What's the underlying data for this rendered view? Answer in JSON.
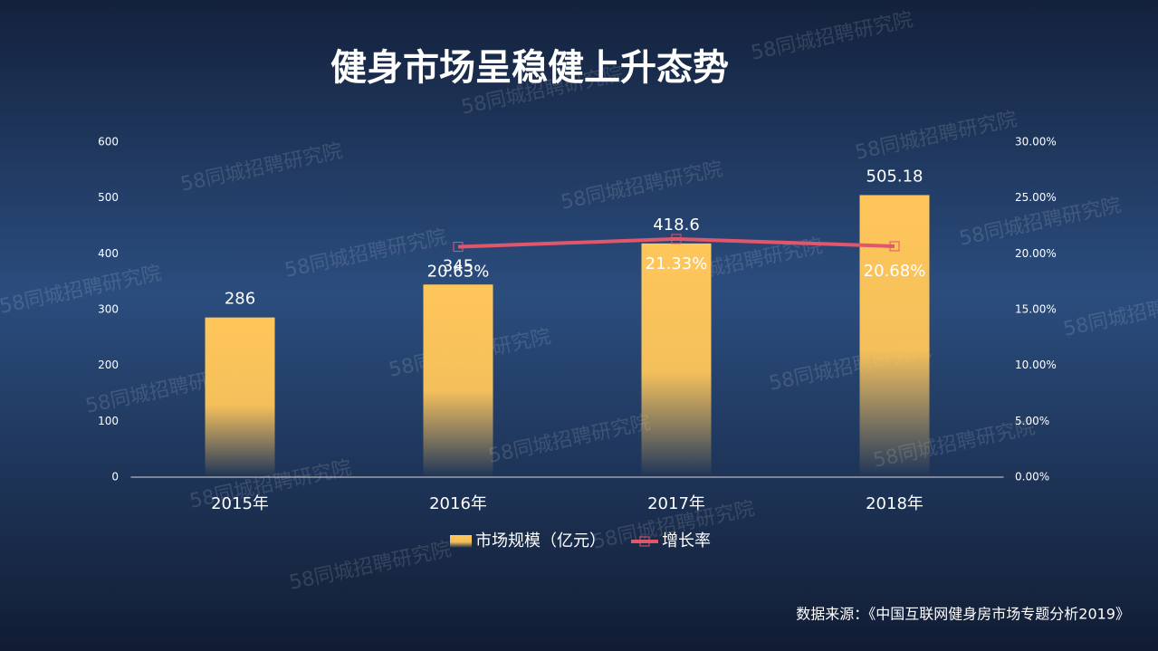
{
  "chart_data": {
    "type": "combo",
    "title": "健身市场呈稳健上升态势",
    "categories": [
      "2015年",
      "2016年",
      "2017年",
      "2018年"
    ],
    "series": [
      {
        "name": "市场规模（亿元）",
        "type": "bar",
        "color": "#FFC65A",
        "values": [
          286,
          345,
          418.6,
          505.18
        ]
      },
      {
        "name": "增长率",
        "type": "line",
        "axis": "y2",
        "color": "#E0566B",
        "values": [
          null,
          20.63,
          21.33,
          20.68
        ],
        "value_labels": [
          null,
          "20.63%",
          "21.33%",
          "20.68%"
        ]
      }
    ],
    "ylim": [
      0,
      600
    ],
    "yticks": [
      0,
      100,
      200,
      300,
      400,
      500,
      600
    ],
    "y2lim": [
      0,
      30
    ],
    "y2ticks": [
      {
        "value": 0,
        "label": "0.00%"
      },
      {
        "value": 5,
        "label": "5.00%"
      },
      {
        "value": 10,
        "label": "10.00%"
      },
      {
        "value": 15,
        "label": "15.00%"
      },
      {
        "value": 20,
        "label": "20.00%"
      },
      {
        "value": 25,
        "label": "25.00%"
      },
      {
        "value": 30,
        "label": "30.00%"
      }
    ],
    "legend": "bottom"
  },
  "source": "数据来源：《中国互联网健身房市场专题分析2019》",
  "watermark": "58同城招聘研究院"
}
